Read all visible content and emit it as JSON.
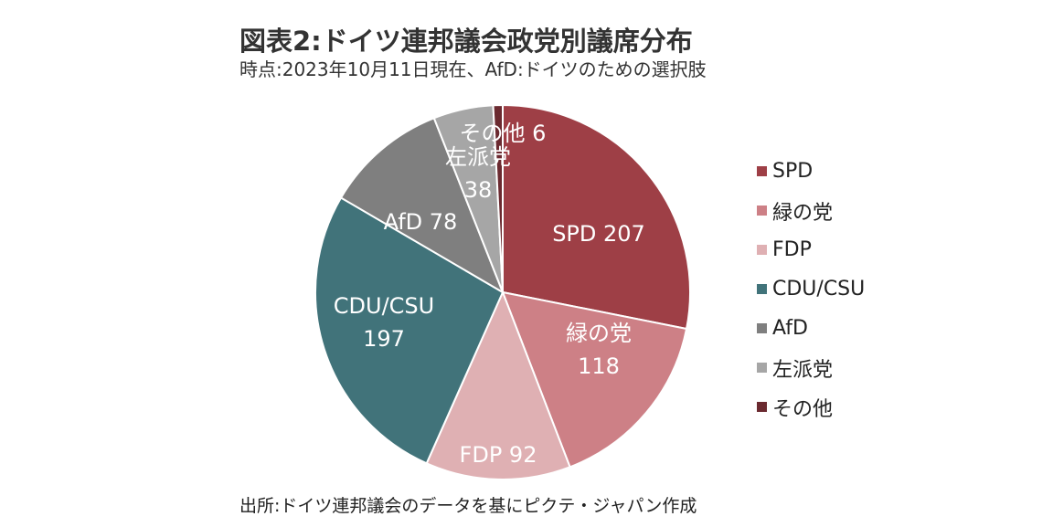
{
  "title": "図表2:ドイツ連邦議会政党別議席分布",
  "subtitle": "時点:2023年10月11日現在、AfD:ドイツのための選択肢",
  "source": "出所:ドイツ連邦議会のデータを基にピクテ・ジャパン作成",
  "chart_data": {
    "type": "pie",
    "start": "12 o'clock, clockwise",
    "legend_position": "right",
    "categories": [
      "SPD",
      "緑の党",
      "FDP",
      "CDU/CSU",
      "AfD",
      "左派党",
      "その他"
    ],
    "values": [
      207,
      118,
      92,
      197,
      78,
      38,
      6
    ],
    "colors": [
      "#9e3f46",
      "#cd8086",
      "#dfb0b3",
      "#41737a",
      "#7f7f7f",
      "#a6a6a6",
      "#6b2a30"
    ],
    "data_labels": [
      [
        "SPD 207"
      ],
      [
        "緑の党",
        "118"
      ],
      [
        "FDP 92"
      ],
      [
        "CDU/CSU",
        "197"
      ],
      [
        "AfD 78"
      ],
      [
        "左派党",
        "38"
      ],
      [
        "その他 6"
      ]
    ]
  }
}
